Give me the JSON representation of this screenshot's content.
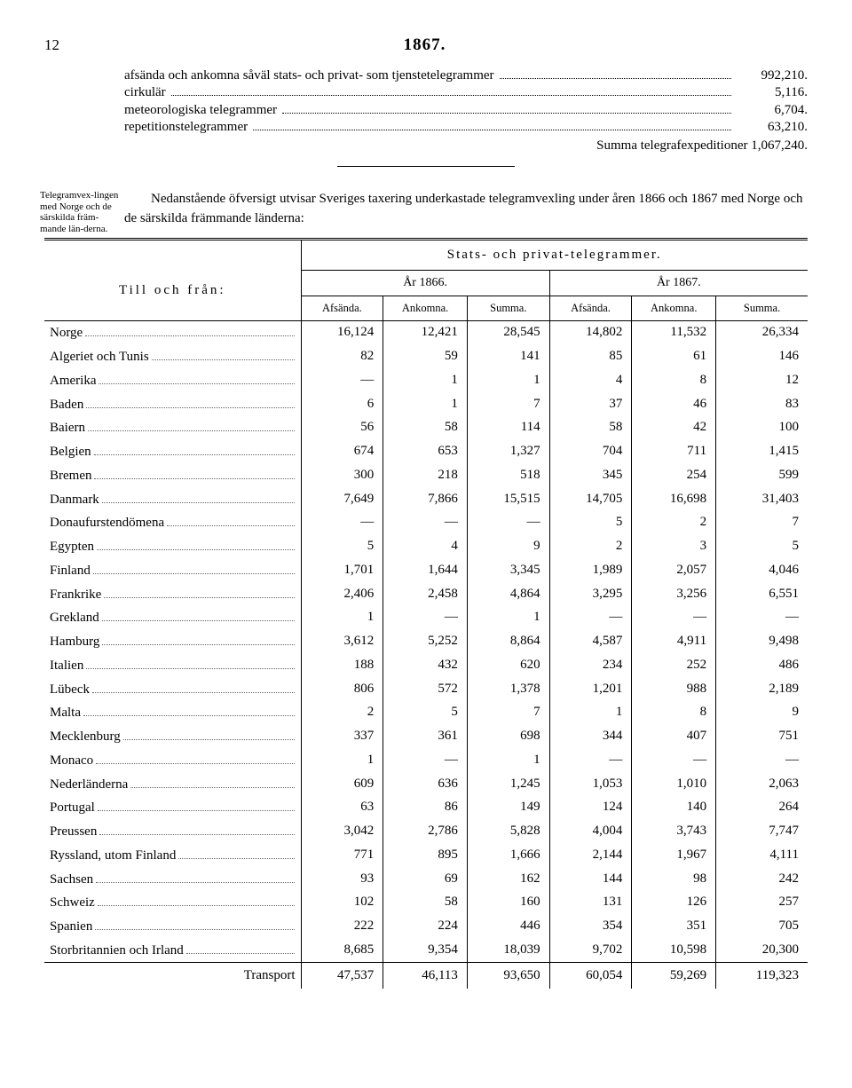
{
  "page_number": "12",
  "year_title": "1867.",
  "summary": {
    "rows": [
      {
        "label": "afsända och ankomna såväl stats- och privat- som tjenstetelegrammer",
        "value": "992,210."
      },
      {
        "label": "cirkulär",
        "value": "5,116."
      },
      {
        "label": "meteorologiska telegrammer",
        "value": "6,704."
      },
      {
        "label": "repetitionstelegrammer",
        "value": "63,210."
      }
    ],
    "total_label": "Summa telegrafexpeditioner",
    "total_value": "1,067,240."
  },
  "margin_note": "Telegramvex-lingen med Norge och de särskilda främ-mande län-derna.",
  "intro": "Nedanstående öfversigt utvisar Sveriges taxering underkastade telegramvexling under åren 1866 och 1867 med Norge och de särskilda främmande länderna:",
  "table": {
    "tofrom_label": "Till och från:",
    "group_header": "Stats- och privat-telegrammer.",
    "year_headers": [
      "År 1866.",
      "År 1867."
    ],
    "col_headers": [
      "Afsända.",
      "Ankomna.",
      "Summa.",
      "Afsända.",
      "Ankomna.",
      "Summa."
    ],
    "rows": [
      {
        "c": "Norge",
        "v": [
          "16,124",
          "12,421",
          "28,545",
          "14,802",
          "11,532",
          "26,334"
        ]
      },
      {
        "c": "Algeriet och Tunis",
        "v": [
          "82",
          "59",
          "141",
          "85",
          "61",
          "146"
        ]
      },
      {
        "c": "Amerika",
        "v": [
          "—",
          "1",
          "1",
          "4",
          "8",
          "12"
        ]
      },
      {
        "c": "Baden",
        "v": [
          "6",
          "1",
          "7",
          "37",
          "46",
          "83"
        ]
      },
      {
        "c": "Baiern",
        "v": [
          "56",
          "58",
          "114",
          "58",
          "42",
          "100"
        ]
      },
      {
        "c": "Belgien",
        "v": [
          "674",
          "653",
          "1,327",
          "704",
          "711",
          "1,415"
        ]
      },
      {
        "c": "Bremen",
        "v": [
          "300",
          "218",
          "518",
          "345",
          "254",
          "599"
        ]
      },
      {
        "c": "Danmark",
        "v": [
          "7,649",
          "7,866",
          "15,515",
          "14,705",
          "16,698",
          "31,403"
        ]
      },
      {
        "c": "Donaufurstendömena",
        "v": [
          "—",
          "—",
          "—",
          "5",
          "2",
          "7"
        ]
      },
      {
        "c": "Egypten",
        "v": [
          "5",
          "4",
          "9",
          "2",
          "3",
          "5"
        ]
      },
      {
        "c": "Finland",
        "v": [
          "1,701",
          "1,644",
          "3,345",
          "1,989",
          "2,057",
          "4,046"
        ]
      },
      {
        "c": "Frankrike",
        "v": [
          "2,406",
          "2,458",
          "4,864",
          "3,295",
          "3,256",
          "6,551"
        ]
      },
      {
        "c": "Grekland",
        "v": [
          "1",
          "—",
          "1",
          "—",
          "—",
          "—"
        ]
      },
      {
        "c": "Hamburg",
        "v": [
          "3,612",
          "5,252",
          "8,864",
          "4,587",
          "4,911",
          "9,498"
        ]
      },
      {
        "c": "Italien",
        "v": [
          "188",
          "432",
          "620",
          "234",
          "252",
          "486"
        ]
      },
      {
        "c": "Lübeck",
        "v": [
          "806",
          "572",
          "1,378",
          "1,201",
          "988",
          "2,189"
        ]
      },
      {
        "c": "Malta",
        "v": [
          "2",
          "5",
          "7",
          "1",
          "8",
          "9"
        ]
      },
      {
        "c": "Mecklenburg",
        "v": [
          "337",
          "361",
          "698",
          "344",
          "407",
          "751"
        ]
      },
      {
        "c": "Monaco",
        "v": [
          "1",
          "—",
          "1",
          "—",
          "—",
          "—"
        ]
      },
      {
        "c": "Nederländerna",
        "v": [
          "609",
          "636",
          "1,245",
          "1,053",
          "1,010",
          "2,063"
        ]
      },
      {
        "c": "Portugal",
        "v": [
          "63",
          "86",
          "149",
          "124",
          "140",
          "264"
        ]
      },
      {
        "c": "Preussen",
        "v": [
          "3,042",
          "2,786",
          "5,828",
          "4,004",
          "3,743",
          "7,747"
        ]
      },
      {
        "c": "Ryssland, utom Finland",
        "v": [
          "771",
          "895",
          "1,666",
          "2,144",
          "1,967",
          "4,111"
        ]
      },
      {
        "c": "Sachsen",
        "v": [
          "93",
          "69",
          "162",
          "144",
          "98",
          "242"
        ]
      },
      {
        "c": "Schweiz",
        "v": [
          "102",
          "58",
          "160",
          "131",
          "126",
          "257"
        ]
      },
      {
        "c": "Spanien",
        "v": [
          "222",
          "224",
          "446",
          "354",
          "351",
          "705"
        ]
      },
      {
        "c": "Storbritannien och Irland",
        "v": [
          "8,685",
          "9,354",
          "18,039",
          "9,702",
          "10,598",
          "20,300"
        ]
      }
    ],
    "transport_label": "Transport",
    "transport_values": [
      "47,537",
      "46,113",
      "93,650",
      "60,054",
      "59,269",
      "119,323"
    ]
  }
}
